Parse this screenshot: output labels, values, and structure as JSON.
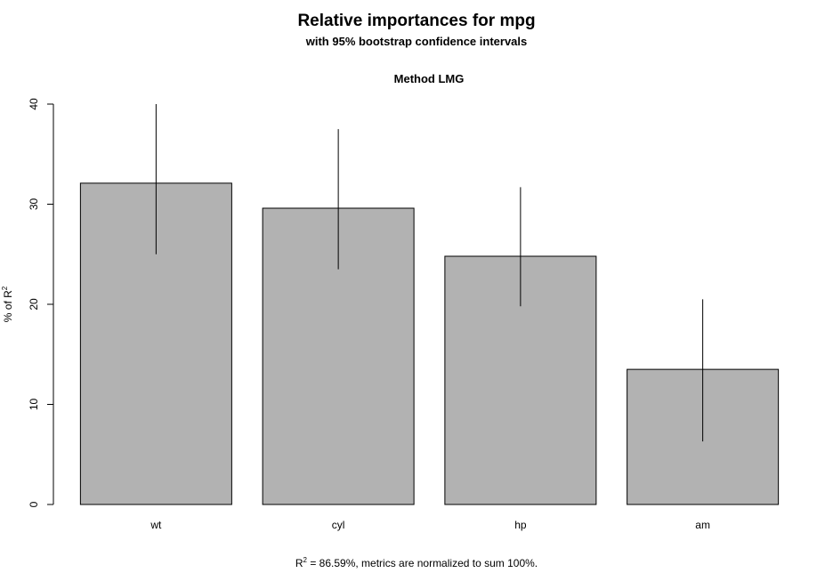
{
  "chart_data": {
    "type": "bar",
    "title": "Relative importances for mpg",
    "subtitle": "with 95% bootstrap confidence intervals",
    "panel_title": "Method LMG",
    "categories": [
      "wt",
      "cyl",
      "hp",
      "am"
    ],
    "values": [
      32.1,
      29.6,
      24.8,
      13.5
    ],
    "ci_lower": [
      25.0,
      23.5,
      19.8,
      6.3
    ],
    "ci_upper": [
      40.0,
      37.5,
      31.7,
      20.5
    ],
    "xlabel": "",
    "ylabel": {
      "text": "% of R",
      "superscript": "2"
    },
    "ylim": [
      0,
      40
    ],
    "yticks": [
      0,
      10,
      20,
      30,
      40
    ],
    "grid": false,
    "legend": "none",
    "colors": {
      "bar_fill": "#b2b2b2",
      "bar_stroke": "#000000",
      "error_bar": "#000000",
      "text": "#000000",
      "background": "#ffffff"
    },
    "footnote": {
      "prefix": "R",
      "superscript": "2",
      "text": " = 86.59%, metrics are normalized to sum 100%."
    }
  }
}
